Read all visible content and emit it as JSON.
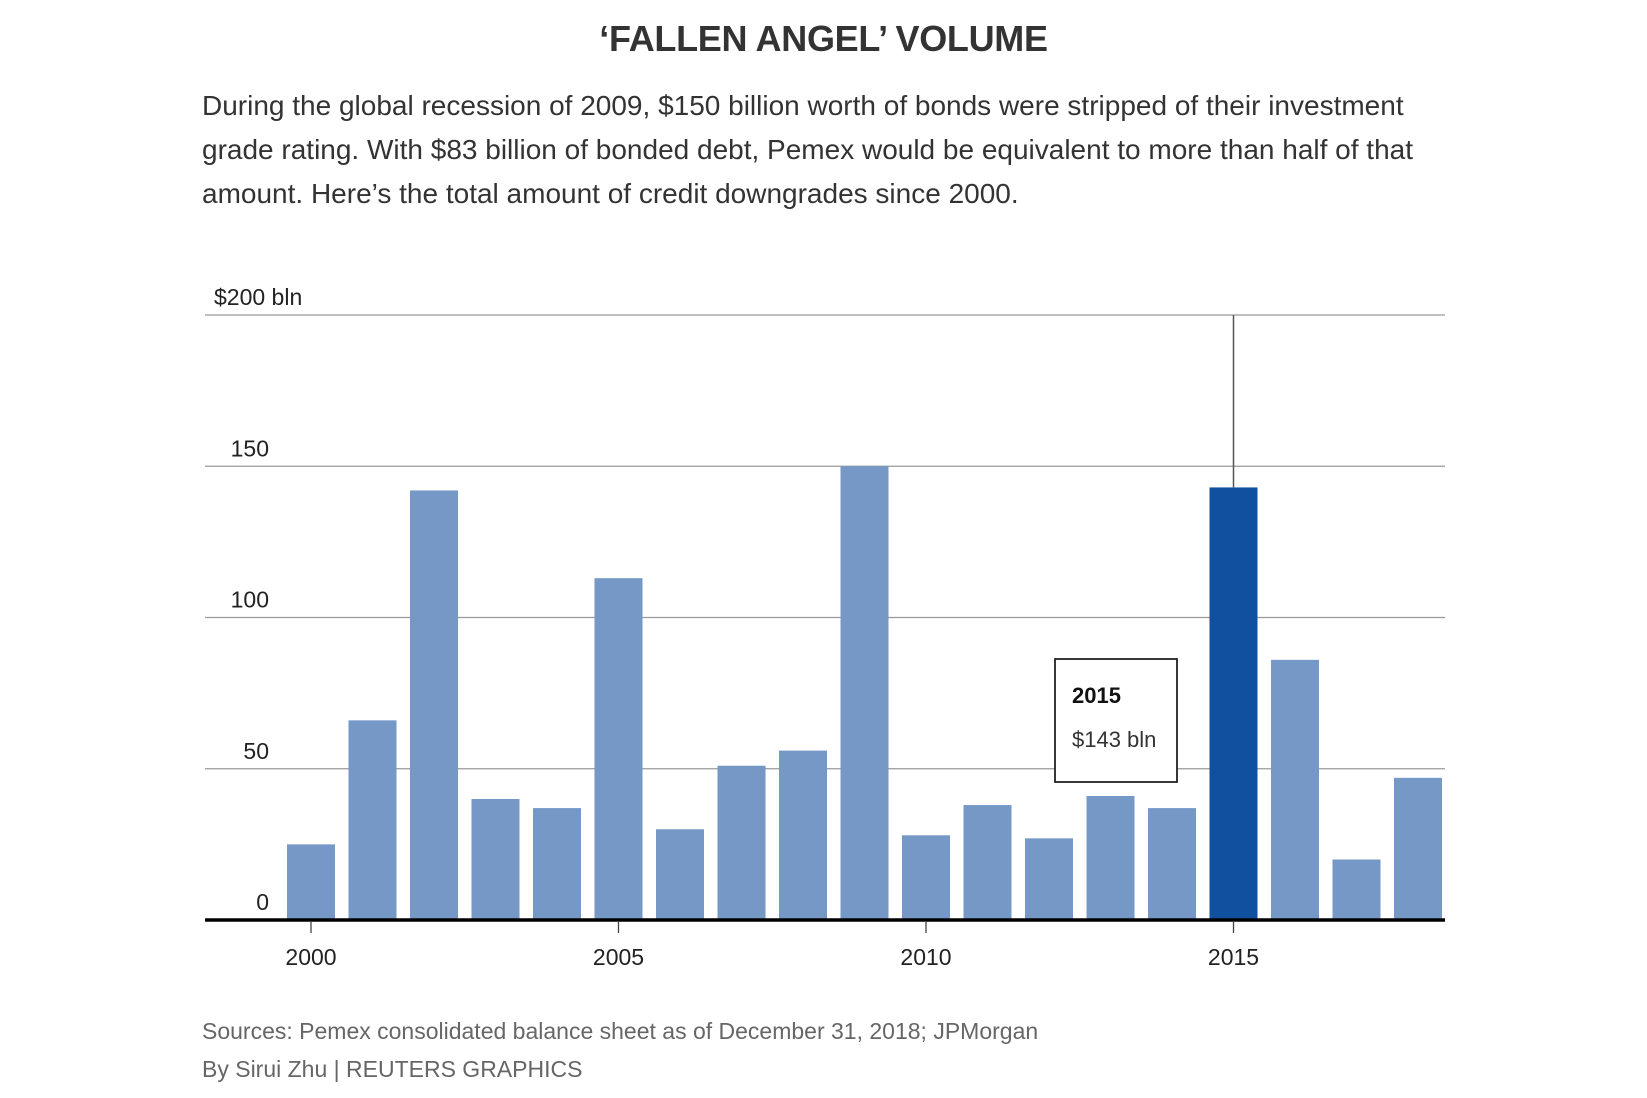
{
  "title": "‘FALLEN ANGEL’ VOLUME",
  "subtitle": "During the global recession of 2009, $150 billion worth of bonds were stripped of their investment grade rating. With $83 billion of bonded debt, Pemex would be equivalent to more than half of that amount. Here’s the total amount of credit downgrades since 2000.",
  "chart_data": {
    "type": "bar",
    "x": [
      2000,
      2001,
      2002,
      2003,
      2004,
      2005,
      2006,
      2007,
      2008,
      2009,
      2010,
      2011,
      2012,
      2013,
      2014,
      2015,
      2016,
      2017,
      2018
    ],
    "values": [
      25,
      66,
      142,
      40,
      37,
      113,
      30,
      51,
      56,
      150,
      28,
      38,
      27,
      41,
      37,
      143,
      86,
      20,
      47
    ],
    "ylim": [
      0,
      200
    ],
    "yticks": [
      0,
      50,
      100,
      150,
      200
    ],
    "ytick_labels": [
      "0",
      "50",
      "100",
      "150",
      "$200 bln"
    ],
    "xticks": [
      2000,
      2005,
      2010,
      2015
    ],
    "xtick_labels": [
      "2000",
      "2005",
      "2010",
      "2015"
    ],
    "grid": true,
    "highlight": {
      "year": 2015,
      "year_label": "2015",
      "value_label": "$143 bln"
    },
    "colors": {
      "bar": "#7598c7",
      "highlight": "#10509e",
      "grid": "#999999",
      "axis": "#000000"
    }
  },
  "sources": "Sources: Pemex consolidated balance sheet as of December 31, 2018; JPMorgan",
  "byline": "By Sirui Zhu | REUTERS GRAPHICS"
}
